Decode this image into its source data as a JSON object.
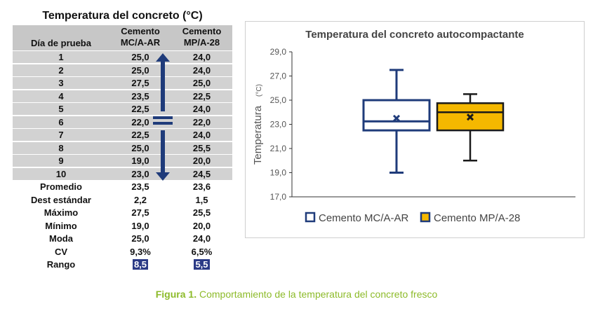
{
  "table": {
    "title": "Temperatura del concreto (°C)",
    "header_day": "Día de prueba",
    "header_c1": "Cemento\nMC/A-AR",
    "header_c2": "Cemento\nMP/A-28",
    "rows": [
      {
        "day": "1",
        "v1": "25,0",
        "v2": "24,0"
      },
      {
        "day": "2",
        "v1": "25,0",
        "v2": "24,0"
      },
      {
        "day": "3",
        "v1": "27,5",
        "v2": "25,0"
      },
      {
        "day": "4",
        "v1": "23,5",
        "v2": "22,5"
      },
      {
        "day": "5",
        "v1": "22,5",
        "v2": "24,0"
      },
      {
        "day": "6",
        "v1": "22,0",
        "v2": "22,0"
      },
      {
        "day": "7",
        "v1": "22,5",
        "v2": "24,0"
      },
      {
        "day": "8",
        "v1": "25,0",
        "v2": "25,5"
      },
      {
        "day": "9",
        "v1": "19,0",
        "v2": "20,0"
      },
      {
        "day": "10",
        "v1": "23,0",
        "v2": "24,5"
      }
    ],
    "stats": [
      {
        "label": "Promedio",
        "v1": "23,5",
        "v2": "23,6"
      },
      {
        "label": "Dest estándar",
        "v1": "2,2",
        "v2": "1,5"
      },
      {
        "label": "Máximo",
        "v1": "27,5",
        "v2": "25,5"
      },
      {
        "label": "Mínimo",
        "v1": "19,0",
        "v2": "20,0"
      },
      {
        "label": "Moda",
        "v1": "25,0",
        "v2": "24,0"
      },
      {
        "label": "CV",
        "v1": "9,3%",
        "v2": "6,5%"
      },
      {
        "label": "Rango",
        "v1": "8,5",
        "v2": "5,5",
        "highlight": true
      }
    ]
  },
  "chart_data": {
    "type": "box",
    "title": "Temperatura del concreto autocompactante",
    "ylabel": "Temperatura",
    "ylabel_unit": "(°C)",
    "ylim": [
      17.0,
      29.0
    ],
    "yticks": [
      "17,0",
      "19,0",
      "21,0",
      "23,0",
      "25,0",
      "27,0",
      "29,0"
    ],
    "series": [
      {
        "name": "Cemento MC/A-AR",
        "min": 19.0,
        "q1": 22.5,
        "median": 23.25,
        "q3": 25.0,
        "max": 27.5,
        "mean": 23.5,
        "color": "#1f3b7a",
        "fill": "#ffffff"
      },
      {
        "name": "Cemento MP/A-28",
        "min": 20.0,
        "q1": 22.5,
        "median": 24.0,
        "q3": 24.75,
        "max": 25.5,
        "mean": 23.6,
        "color": "#1a1a1a",
        "fill": "#f5b800"
      }
    ]
  },
  "caption": {
    "prefix": "Figura 1.",
    "text": " Comportamiento de la temperatura del concreto fresco"
  },
  "colors": {
    "arrow": "#1f3b7a",
    "highlight": "#2b3a86",
    "caption": "#8dbb2a"
  }
}
